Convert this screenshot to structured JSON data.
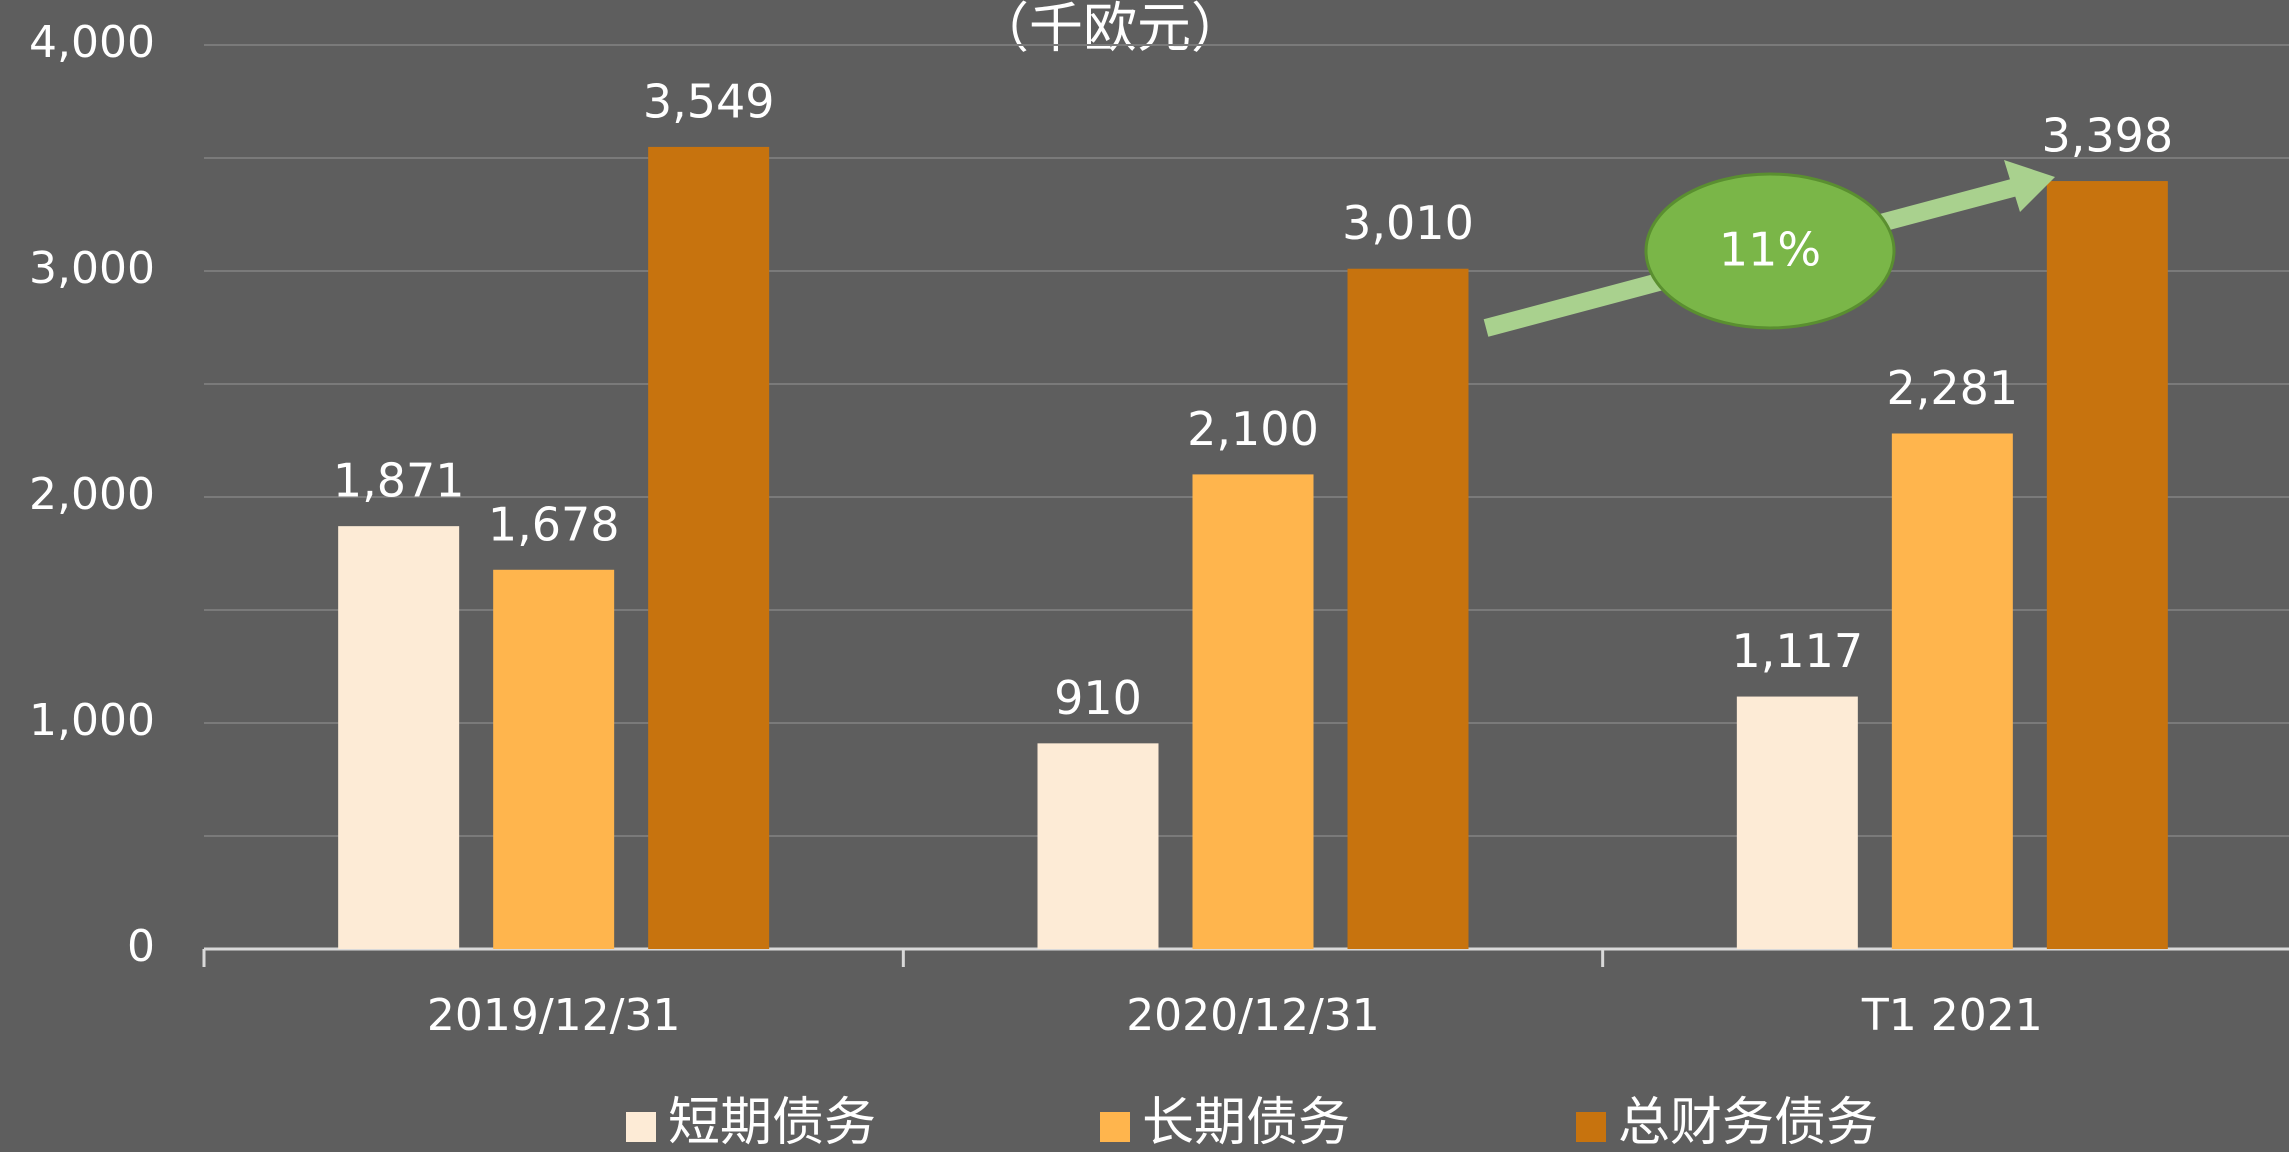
{
  "chart_data": {
    "type": "bar",
    "title": "（千欧元）",
    "categories": [
      "2019/12/31",
      "2020/12/31",
      "T1 2021"
    ],
    "series": [
      {
        "name": "短期债务",
        "color": "#fdebd6",
        "values": [
          1871,
          910,
          1117
        ],
        "value_labels": [
          "1,871",
          "910",
          "1,117"
        ]
      },
      {
        "name": "长期债务",
        "color": "#ffb54d",
        "values": [
          1678,
          2100,
          2281
        ],
        "value_labels": [
          "1,678",
          "2,100",
          "2,281"
        ]
      },
      {
        "name": "总财务债务",
        "color": "#c7730e",
        "values": [
          3549,
          3010,
          3398
        ],
        "value_labels": [
          "3,549",
          "3,010",
          "3,398"
        ]
      }
    ],
    "ylim": [
      0,
      4000
    ],
    "yticks": [
      0,
      {
        "value": 1000,
        "label": "1,000"
      },
      {
        "value": 2000,
        "label": "2,000"
      },
      {
        "value": 3000,
        "label": "3,000"
      },
      {
        "value": 4000,
        "label": "4,000"
      }
    ],
    "minor_yticks": [
      500,
      1500,
      2500,
      3500
    ],
    "grid": true,
    "legend": "bottom",
    "annotation": "11%"
  }
}
